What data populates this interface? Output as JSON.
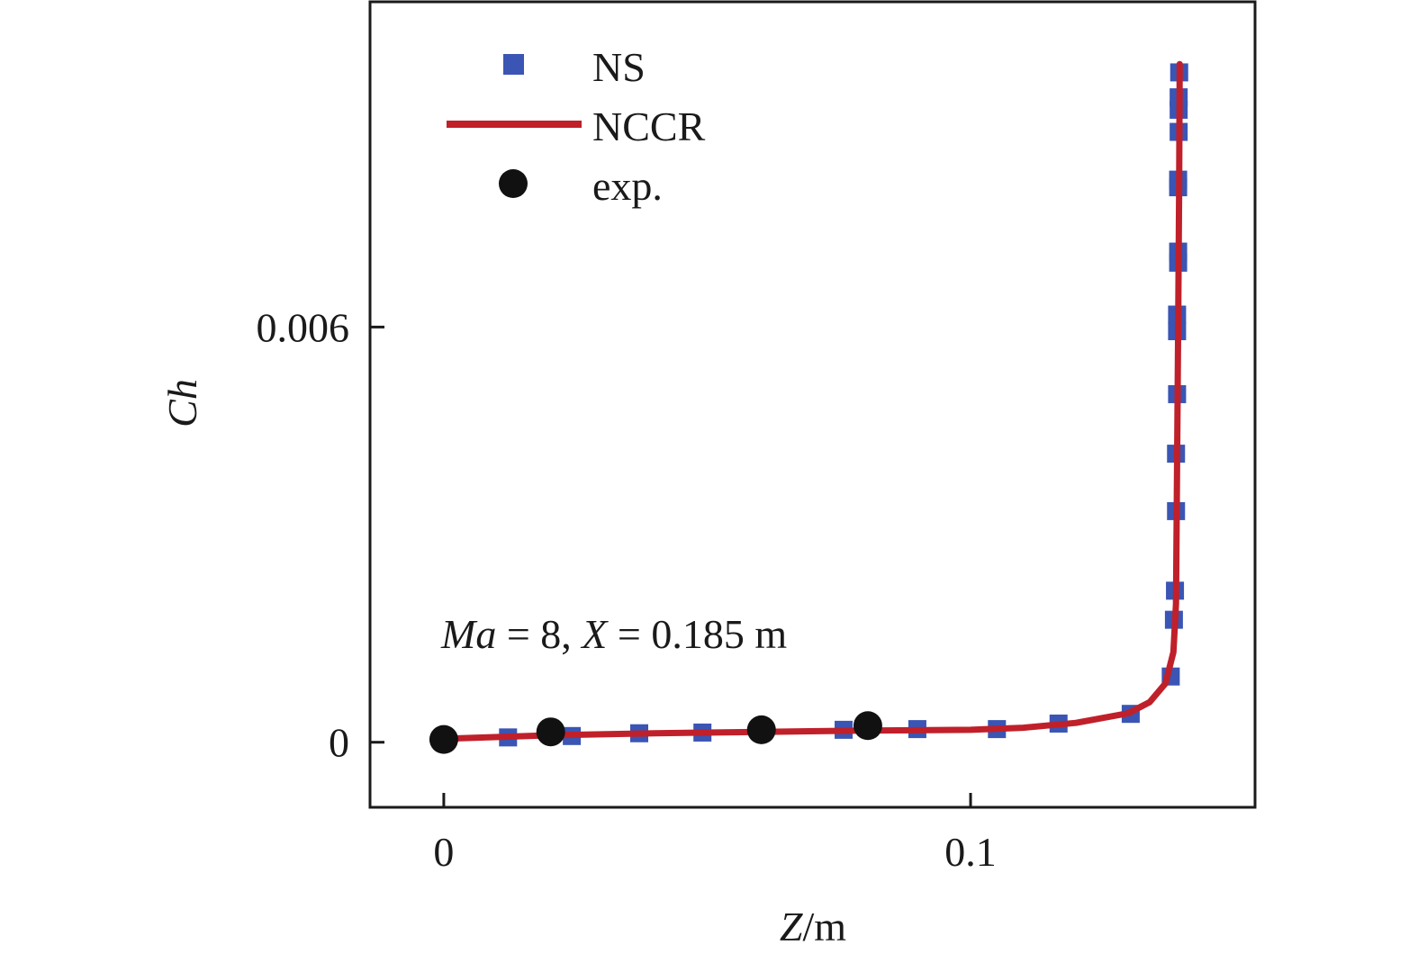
{
  "chart_data": {
    "type": "line",
    "xlabel": {
      "italic": "Z",
      "rest": "/m"
    },
    "ylabel": "Ch",
    "xlim": [
      -0.014,
      0.154
    ],
    "ylim": [
      -0.00094,
      0.0107
    ],
    "x_ticks": [
      {
        "value": 0,
        "label": "0"
      },
      {
        "value": 0.1,
        "label": "0.1"
      }
    ],
    "y_ticks": [
      {
        "value": 0,
        "label": "0"
      },
      {
        "value": 0.006,
        "label": "0.006"
      }
    ],
    "grid": false,
    "legend": {
      "position": "top-left",
      "entries": [
        {
          "label": "NS",
          "marker": "square",
          "color": "#3a55b4"
        },
        {
          "label": "NCCR",
          "marker": "line",
          "color": "#c0202a"
        },
        {
          "label": "exp.",
          "marker": "circle",
          "color": "#111111"
        }
      ]
    },
    "annotation": {
      "ma_symbol": "Ma",
      "ma_value": " = 8, ",
      "x_symbol": "X",
      "x_value": " = 0.185 m"
    },
    "series": [
      {
        "name": "NS",
        "style": "markers",
        "color": "#3a55b4",
        "x": [
          0.0122,
          0.0243,
          0.0371,
          0.0491,
          0.0759,
          0.0899,
          0.105,
          0.1167,
          0.1304,
          0.138,
          0.1386,
          0.1388,
          0.139,
          0.139,
          0.1392,
          0.1392,
          0.1392,
          0.1394,
          0.1394,
          0.1394,
          0.1394,
          0.1395,
          0.1395,
          0.1395,
          0.1396
        ],
        "y": [
          7e-05,
          9e-05,
          0.00013,
          0.00014,
          0.00018,
          0.00019,
          0.00019,
          0.00027,
          0.00041,
          0.00095,
          0.00177,
          0.00219,
          0.00334,
          0.00417,
          0.00503,
          0.00594,
          0.00618,
          0.00693,
          0.00709,
          0.00802,
          0.00813,
          0.00882,
          0.00914,
          0.00932,
          0.00968
        ]
      },
      {
        "name": "NCCR",
        "style": "line",
        "color": "#c0202a",
        "x": [
          0,
          0.02,
          0.04,
          0.06,
          0.08,
          0.1,
          0.11,
          0.12,
          0.13,
          0.134,
          0.137,
          0.1385,
          0.139,
          0.1392,
          0.1394,
          0.1396,
          0.1397
        ],
        "y": [
          5e-05,
          0.0001,
          0.00013,
          0.00015,
          0.00017,
          0.00018,
          0.00021,
          0.00028,
          0.00042,
          0.00058,
          0.00085,
          0.0013,
          0.002,
          0.004,
          0.006,
          0.008,
          0.0098
        ]
      },
      {
        "name": "exp.",
        "style": "markers",
        "color": "#111111",
        "x": [
          0,
          0.0203,
          0.0603,
          0.0805
        ],
        "y": [
          4e-05,
          0.00015,
          0.00018,
          0.00024
        ]
      }
    ]
  }
}
